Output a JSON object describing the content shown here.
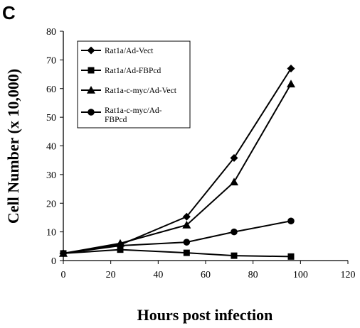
{
  "panel_label": "C",
  "chart_data": {
    "type": "line",
    "xlabel": "Hours post infection",
    "ylabel": "Cell Number (x 10,000)",
    "xlim": [
      0,
      120
    ],
    "ylim": [
      0,
      80
    ],
    "x_ticks": [
      0,
      20,
      40,
      60,
      80,
      100,
      120
    ],
    "y_ticks": [
      0,
      10,
      20,
      30,
      40,
      50,
      60,
      70,
      80
    ],
    "grid": false,
    "legend_position": "top-left",
    "series": [
      {
        "name": "Rat1a/Ad-Vect",
        "marker": "diamond",
        "x": [
          0,
          24,
          52,
          72,
          96
        ],
        "y": [
          2.5,
          5.5,
          15.3,
          35.8,
          67.0
        ]
      },
      {
        "name": "Rat1a/Ad-FBPcd",
        "marker": "square",
        "x": [
          0,
          24,
          52,
          72,
          96
        ],
        "y": [
          2.5,
          3.8,
          2.7,
          1.7,
          1.4
        ]
      },
      {
        "name": "Rat1a-c-myc/Ad-Vect",
        "marker": "triangle",
        "x": [
          0,
          24,
          52,
          72,
          96
        ],
        "y": [
          2.5,
          6.0,
          12.4,
          27.4,
          61.6
        ]
      },
      {
        "name": "Rat1a-c-myc/Ad-FBPcd",
        "marker": "circle",
        "x": [
          0,
          24,
          52,
          72,
          96
        ],
        "y": [
          2.5,
          5.2,
          6.4,
          10.0,
          13.8
        ]
      }
    ]
  }
}
